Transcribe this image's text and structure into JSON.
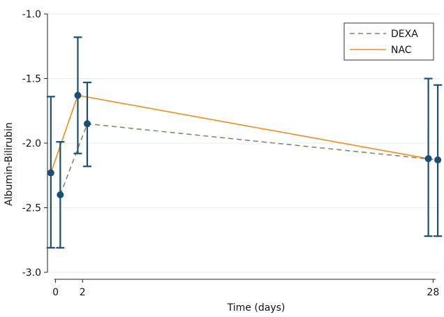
{
  "chart_data": {
    "type": "line",
    "xlabel": "Time (days)",
    "ylabel": "Albumin-Bilirubin",
    "ylim": [
      -3.0,
      -1.0
    ],
    "xlim": [
      -0.6,
      28.5
    ],
    "x_ticks": [
      {
        "value": 0,
        "label": "0"
      },
      {
        "value": 2,
        "label": "2"
      },
      {
        "value": 28,
        "label": "28"
      }
    ],
    "y_ticks": [
      {
        "value": -1.0,
        "label": "-1.0"
      },
      {
        "value": -1.5,
        "label": "-1.5"
      },
      {
        "value": -2.0,
        "label": "-2.0"
      },
      {
        "value": -2.5,
        "label": "-2.5"
      },
      {
        "value": -3.0,
        "label": "-3.0"
      }
    ],
    "grid": true,
    "legend_position": "top-right",
    "series": [
      {
        "name": "DEXA",
        "color": "#7f8a68",
        "line_style": "dashed",
        "points": [
          {
            "x": 0.35,
            "y": -2.4,
            "lower": -2.81,
            "upper": -1.99
          },
          {
            "x": 2.35,
            "y": -1.85,
            "lower": -2.18,
            "upper": -1.53
          },
          {
            "x": 28.35,
            "y": -2.13,
            "lower": -2.72,
            "upper": -1.55
          }
        ]
      },
      {
        "name": "NAC",
        "color": "#f28c1b",
        "line_style": "solid",
        "points": [
          {
            "x": -0.35,
            "y": -2.23,
            "lower": -2.81,
            "upper": -1.64
          },
          {
            "x": 1.65,
            "y": -1.63,
            "lower": -2.08,
            "upper": -1.18
          },
          {
            "x": 27.65,
            "y": -2.12,
            "lower": -2.72,
            "upper": -1.5
          }
        ]
      }
    ],
    "marker_color": "#1b4f72",
    "errorbar_color": "#1b4f72"
  }
}
